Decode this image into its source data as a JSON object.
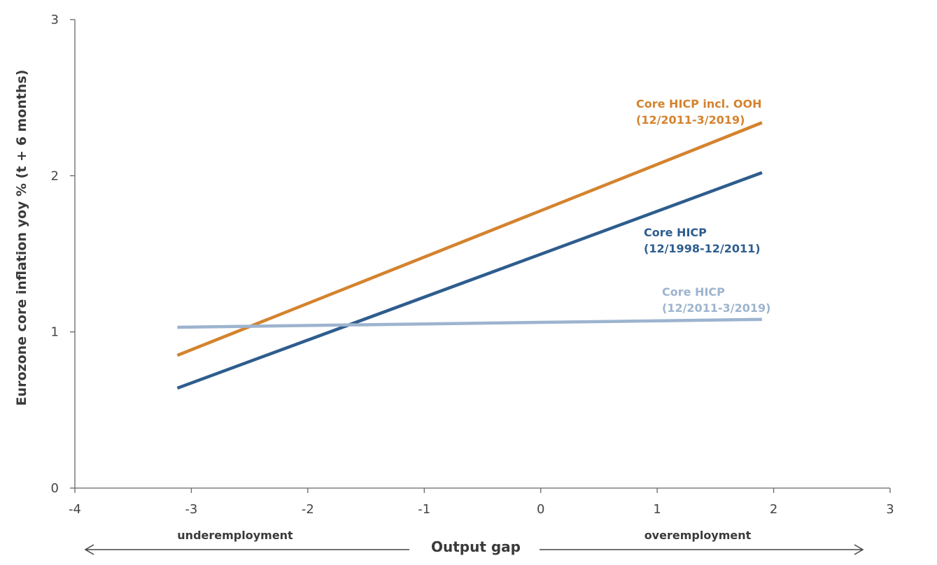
{
  "chart_data": {
    "type": "line",
    "ylabel": "Eurozone core inflation yoy % (t + 6 months)",
    "xlabel": "Output gap",
    "xlim": [
      -4,
      3
    ],
    "ylim": [
      0,
      3
    ],
    "xticks": [
      "-4",
      "-3",
      "-2",
      "-1",
      "0",
      "1",
      "2",
      "3"
    ],
    "yticks": [
      "0",
      "1",
      "2",
      "3"
    ],
    "grid": false,
    "legend": "none",
    "arrows": {
      "left": "underemployment",
      "right": "overemployment"
    },
    "series": [
      {
        "name": "Core HICP incl. OOH",
        "period": "(12/2011-3/2019)",
        "color": "#d4832e",
        "x": [
          -3.12,
          1.9
        ],
        "y": [
          0.85,
          2.34
        ]
      },
      {
        "name": "Core HICP",
        "period": "(12/1998-12/2011)",
        "color": "#2e5d8e",
        "x": [
          -3.12,
          1.9
        ],
        "y": [
          0.64,
          2.02
        ]
      },
      {
        "name": "Core HICP",
        "period": "(12/2011-3/2019)",
        "color": "#9db4cf",
        "x": [
          -3.12,
          1.9
        ],
        "y": [
          1.03,
          1.08
        ]
      }
    ]
  }
}
